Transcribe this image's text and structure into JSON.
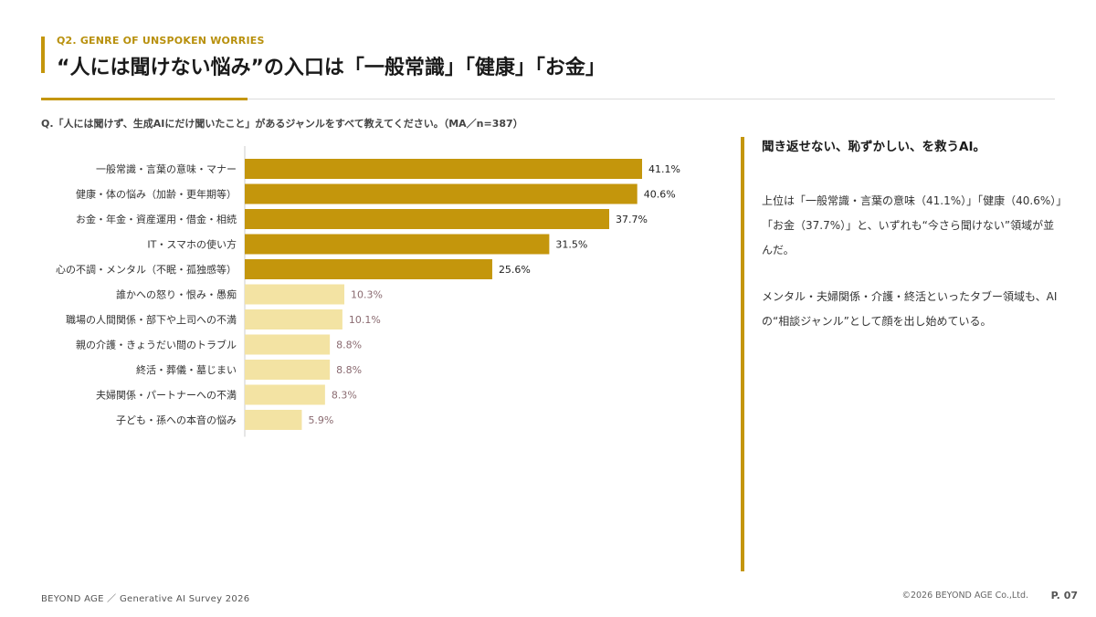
{
  "header": {
    "eyebrow": "Q2.  GENRE OF UNSPOKEN WORRIES",
    "title": "“人には聞けない悩み”の入口は「一般常識」「健康」「お金」"
  },
  "question": "Q.「人には聞けず、生成AIにだけ聞いたこと」があるジャンルをすべて教えてください。（MA／n=387）",
  "chart_data": {
    "type": "bar",
    "orientation": "horizontal",
    "categories": [
      "一般常識・言葉の意味・マナー",
      "健康・体の悩み（加齢・更年期等）",
      "お金・年金・資産運用・借金・相続",
      "IT・スマホの使い方",
      "心の不調・メンタル（不眠・孤独感等）",
      "誰かへの怒り・恨み・愚痴",
      "職場の人間関係・部下や上司への不満",
      "親の介護・きょうだい間のトラブル",
      "終活・葬儀・墓じまい",
      "夫婦関係・パートナーへの不満",
      "子ども・孫への本音の悩み"
    ],
    "values": [
      41.1,
      40.6,
      37.7,
      31.5,
      25.6,
      10.3,
      10.1,
      8.8,
      8.8,
      8.3,
      5.9
    ],
    "value_labels": [
      "41.1%",
      "40.6%",
      "37.7%",
      "31.5%",
      "25.6%",
      "10.3%",
      "10.1%",
      "8.8%",
      "8.8%",
      "8.3%",
      "5.9%"
    ],
    "highlight_count": 5,
    "colors": {
      "highlight": "#c4960c",
      "normal": "#f3e3a3",
      "label_highlight": "#222222",
      "label_normal": "#8a6a70",
      "axis": "#cccccc"
    },
    "xlim": [
      0,
      41.1
    ],
    "grid": false
  },
  "sidebar": {
    "heading": "聞き返せない、恥ずかしい、を救うAI。",
    "paragraph1": "上位は「一般常識・言葉の意味（41.1%）」「健康（40.6%）」「お金（37.7%）」と、いずれも“今さら聞けない”領域が並んだ。",
    "paragraph2": "メンタル・夫婦関係・介護・終活といったタブー領域も、AIの“相談ジャンル”として顔を出し始めている。"
  },
  "footer": {
    "left": "BEYOND AGE  ／  Generative AI Survey 2026",
    "copyright": "©2026 BEYOND AGE Co.,Ltd.",
    "page": "P. 07"
  }
}
